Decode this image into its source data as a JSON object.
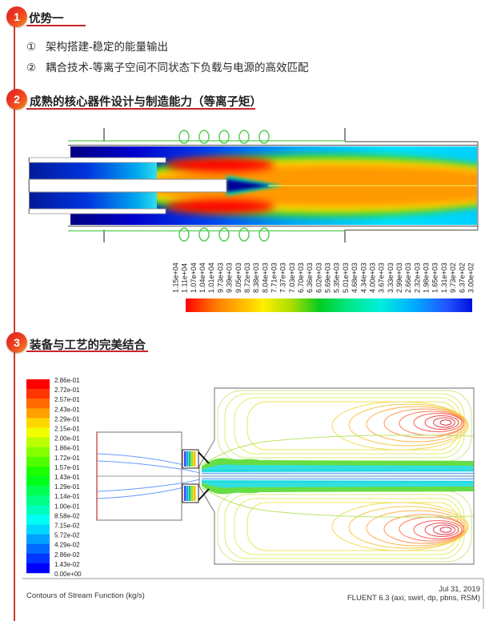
{
  "accent": {
    "red_line": "#cf3a2e",
    "underline": "#c9252b",
    "badge_gradient_top": "#e52d22",
    "badge_gradient_bottom": "#f7941d",
    "title_color": "#1f1f1f"
  },
  "sections": [
    {
      "number": "1",
      "title": "优势一",
      "bullets": [
        {
          "marker": "①",
          "text": "架构搭建-稳定的能量输出"
        },
        {
          "marker": "②",
          "text": "耦合技术-等离子空间不同状态下负载与电源的高效匹配"
        }
      ]
    },
    {
      "number": "2",
      "title": "成熟的核心器件设计与制造能力（等离子矩）"
    },
    {
      "number": "3",
      "title": "装备与工艺的完美结合"
    }
  ],
  "figures": {
    "torch": {
      "type": "contour-heatmap",
      "description": "plasma-torch-temperature-contour",
      "scale_labels": [
        "1.15e+04",
        "1.11e+04",
        "1.07e+04",
        "1.04e+04",
        "1.01e+04",
        "9.73e+03",
        "9.39e+03",
        "9.05e+03",
        "8.72e+03",
        "8.38e+03",
        "8.04e+03",
        "7.71e+03",
        "7.37e+03",
        "7.03e+03",
        "6.70e+03",
        "6.36e+03",
        "6.02e+03",
        "5.69e+03",
        "5.35e+03",
        "5.01e+03",
        "4.68e+03",
        "4.34e+03",
        "4.00e+03",
        "3.67e+03",
        "3.33e+03",
        "2.99e+03",
        "2.66e+03",
        "2.32e+03",
        "1.98e+03",
        "1.65e+03",
        "1.31e+03",
        "9.73e+02",
        "6.37e+02",
        "3.00e+02"
      ]
    },
    "stream": {
      "type": "contour",
      "legend_labels": [
        "2.86e-01",
        "2.72e-01",
        "2.57e-01",
        "2.43e-01",
        "2.29e-01",
        "2.15e-01",
        "2.00e-01",
        "1.86e-01",
        "1.72e-01",
        "1.57e-01",
        "1.43e-01",
        "1.29e-01",
        "1.14e-01",
        "1.00e-01",
        "8.58e-02",
        "7.15e-02",
        "5.72e-02",
        "4.29e-02",
        "2.86e-02",
        "1.43e-02",
        "0.00e+00"
      ],
      "caption": "Contours of Stream Function (kg/s)",
      "date": "Jul 31, 2019",
      "solver": "FLUENT 6.3 (axi, swirl, dp, pbns, RSM)"
    }
  }
}
